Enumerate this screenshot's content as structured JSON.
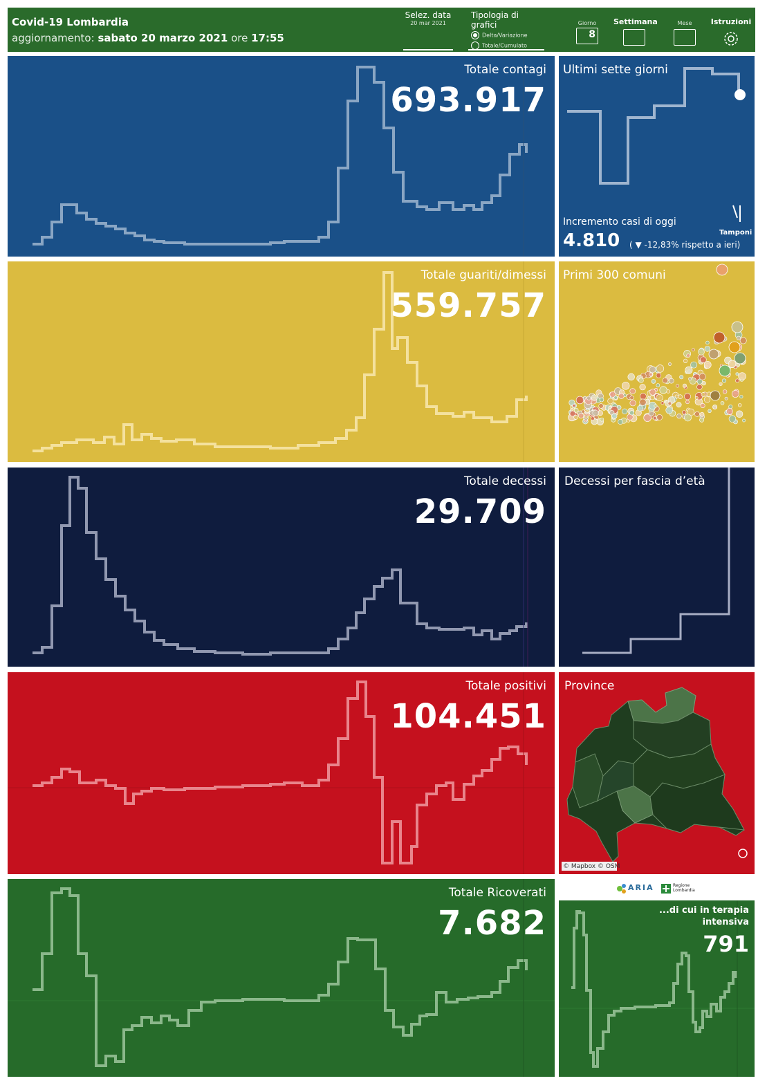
{
  "header": {
    "title": "Covid-19 Lombardia",
    "update_prefix": "aggiornamento:",
    "update_date": "sabato 20 marzo 2021",
    "update_mid": "ore",
    "update_time": "17:55",
    "date_select_label": "Selez. data",
    "date_select_value": "20 mar 2021",
    "chart_type_label": "Tipologia di grafici",
    "option_delta": "Delta/Variazione",
    "option_totale": "Totale/Cumulato",
    "btn_giorno": "Giorno",
    "btn_giorno_num": "8",
    "btn_settimana": "Settimana",
    "btn_mese": "Mese",
    "btn_istruzioni": "Istruzioni"
  },
  "colors": {
    "contagi": "#1a5088",
    "guariti": "#dbbb40",
    "decessi": "#0f1c3e",
    "positivi": "#c5111e",
    "ricoverati": "#266b2a",
    "header": "#2a6b2b"
  },
  "panels": {
    "contagi": {
      "title": "Totale contagi",
      "value": "693.917"
    },
    "guariti": {
      "title": "Totale guariti/dimessi",
      "value": "559.757"
    },
    "decessi": {
      "title": "Totale decessi",
      "value": "29.709"
    },
    "positivi": {
      "title": "Totale positivi",
      "value": "104.451"
    },
    "ricoverati": {
      "title": "Totale Ricoverati",
      "value": "7.682"
    }
  },
  "side": {
    "settegiorni_title": "Ultimi sette giorni",
    "incremento_label": "Incremento casi di oggi",
    "incremento_value": "4.810",
    "incremento_change": "( ▼ -12,83% rispetto a  ieri)",
    "tamponi_label": "Tamponi",
    "comuni_title": "Primi 300 comuni",
    "fascia_title": "Decessi per fascia d’età",
    "province_title": "Province",
    "map_credit": "© Mapbox © OSM",
    "logo_aria": "ARIA",
    "logo_regione": "Regione Lombardia",
    "terapia_title_1": "...di cui in terapia",
    "terapia_title_2": "intensiva",
    "terapia_value": "791"
  }
}
